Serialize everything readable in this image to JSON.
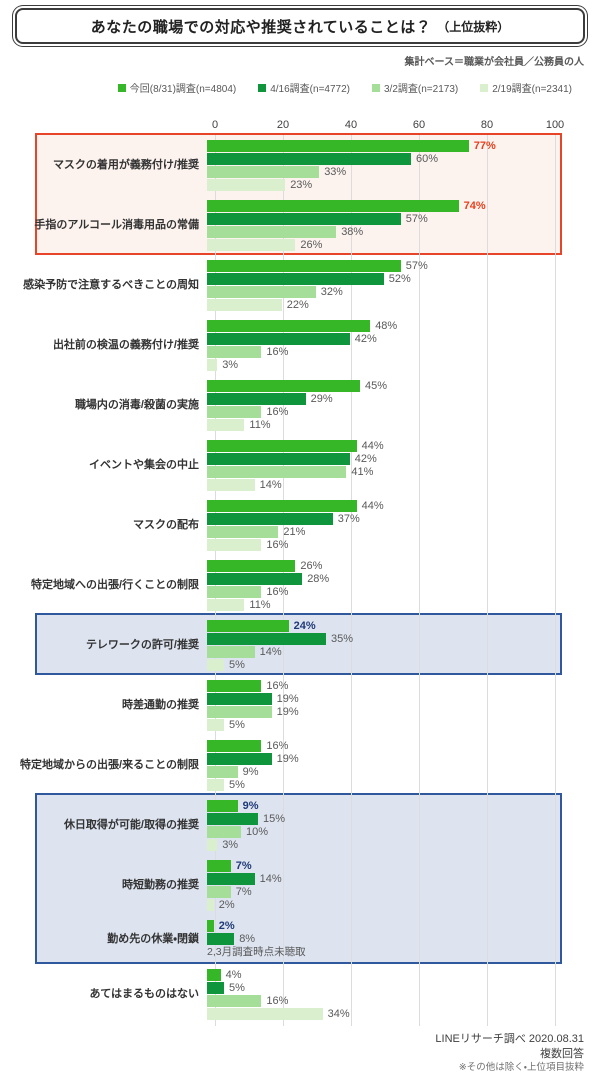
{
  "title": {
    "main": "あなたの職場での対応や推奨されていることは？",
    "suffix": "（上位抜粋）"
  },
  "subtitle": "集計ベース＝職業が会社員／公務員の人",
  "legend": [
    {
      "label": "今回(8/31)調査(n=4804)",
      "color": "#35b727"
    },
    {
      "label": "4/16調査(n=4772)",
      "color": "#0f963c"
    },
    {
      "label": "3/2調査(n=2173)",
      "color": "#a5de98"
    },
    {
      "label": "2/19調査(n=2341)",
      "color": "#d9efce"
    }
  ],
  "chart_data": {
    "type": "bar",
    "orientation": "horizontal",
    "xlim": [
      0,
      100
    ],
    "x_ticks": [
      0,
      20,
      40,
      60,
      80,
      100
    ],
    "grid": true,
    "series_names": [
      "今回(8/31)調査(n=4804)",
      "4/16調査(n=4772)",
      "3/2調査(n=2173)",
      "2/19調査(n=2341)"
    ],
    "series_colors": [
      "#35b727",
      "#0f963c",
      "#a5de98",
      "#d9efce"
    ],
    "value_label_colors": {
      "red": "#e8401d",
      "blue": "#1f3a78",
      "default": "#595959"
    },
    "groups": [
      {
        "label": "マスクの着用が義務付け/推奨",
        "values": [
          77,
          60,
          33,
          23
        ],
        "highlight": "red"
      },
      {
        "label": "手指のアルコール消毒用品の常備",
        "values": [
          74,
          57,
          38,
          26
        ],
        "highlight": "red"
      },
      {
        "label": "感染予防で注意するべきことの周知",
        "values": [
          57,
          52,
          32,
          22
        ],
        "highlight": null
      },
      {
        "label": "出社前の検温の義務付け/推奨",
        "values": [
          48,
          42,
          16,
          3
        ],
        "highlight": null
      },
      {
        "label": "職場内の消毒/殺菌の実施",
        "values": [
          45,
          29,
          16,
          11
        ],
        "highlight": null
      },
      {
        "label": "イベントや集会の中止",
        "values": [
          44,
          42,
          41,
          14
        ],
        "highlight": null
      },
      {
        "label": "マスクの配布",
        "values": [
          44,
          37,
          21,
          16
        ],
        "highlight": null
      },
      {
        "label": "特定地域への出張/行くことの制限",
        "values": [
          26,
          28,
          16,
          11
        ],
        "highlight": null
      },
      {
        "label": "テレワークの許可/推奨",
        "values": [
          24,
          35,
          14,
          5
        ],
        "highlight": "blue"
      },
      {
        "label": "時差通勤の推奨",
        "values": [
          16,
          19,
          19,
          5
        ],
        "highlight": null
      },
      {
        "label": "特定地域からの出張/来ることの制限",
        "values": [
          16,
          19,
          9,
          5
        ],
        "highlight": null
      },
      {
        "label": "休日取得が可能/取得の推奨",
        "values": [
          9,
          15,
          10,
          3
        ],
        "highlight": "blue"
      },
      {
        "label": "時短勤務の推奨",
        "values": [
          7,
          14,
          7,
          2
        ],
        "highlight": "blue"
      },
      {
        "label": "勤め先の休業・閉鎖",
        "values": [
          2,
          8,
          null,
          null
        ],
        "highlight": "blue",
        "note": "2,3月調査時点未聴取"
      },
      {
        "label": "あてはまるものはない",
        "values": [
          4,
          5,
          16,
          34
        ],
        "highlight": null
      }
    ],
    "highlight_boxes": [
      {
        "type": "red",
        "from": 0,
        "to": 1
      },
      {
        "type": "blue",
        "from": 8,
        "to": 8
      },
      {
        "type": "blue",
        "from": 11,
        "to": 13
      }
    ]
  },
  "footer": {
    "line1": "LINEリサーチ調べ 2020.08.31",
    "line2": "複数回答",
    "line3": "※その他は除く・上位項目抜粋"
  }
}
